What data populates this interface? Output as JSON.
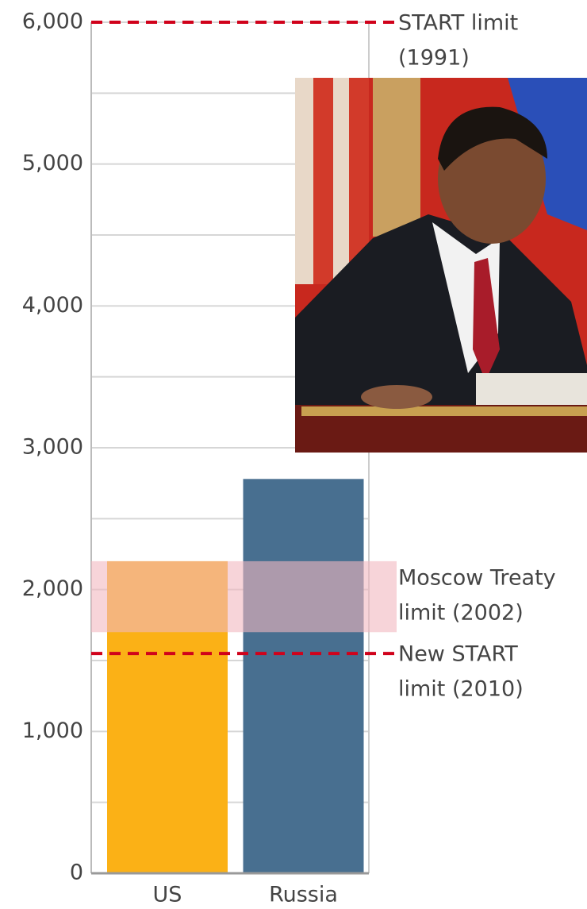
{
  "chart_data": {
    "type": "bar",
    "categories": [
      "US",
      "Russia"
    ],
    "series": [
      {
        "values": [
          2200,
          2780
        ],
        "colors": [
          "#fbb116",
          "#486f90"
        ]
      }
    ],
    "ylim": [
      0,
      6000
    ],
    "yticks": [
      0,
      {
        "value": 1000,
        "label": "1,000"
      },
      {
        "value": 2000,
        "label": "2,000"
      },
      {
        "value": 3000,
        "label": "3,000"
      },
      {
        "value": 4000,
        "label": "4,000"
      },
      {
        "value": 5000,
        "label": "5,000"
      },
      {
        "value": 6000,
        "label": "6,000"
      }
    ],
    "minor_yticks": [
      500,
      1500,
      2500,
      3500,
      4500,
      5500
    ],
    "grid": true,
    "reference_lines": [
      {
        "value": 6000,
        "lines": [
          "START limit",
          "(1991)"
        ],
        "color": "#d0021b"
      },
      {
        "value": 1550,
        "lines": [
          "New START",
          "limit (2010)"
        ],
        "color": "#d0021b"
      }
    ],
    "reference_bands": [
      {
        "from": 1700,
        "to": 2200,
        "lines": [
          "Moscow Treaty",
          "limit (2002)"
        ],
        "color": "#f2b8c0"
      }
    ]
  }
}
